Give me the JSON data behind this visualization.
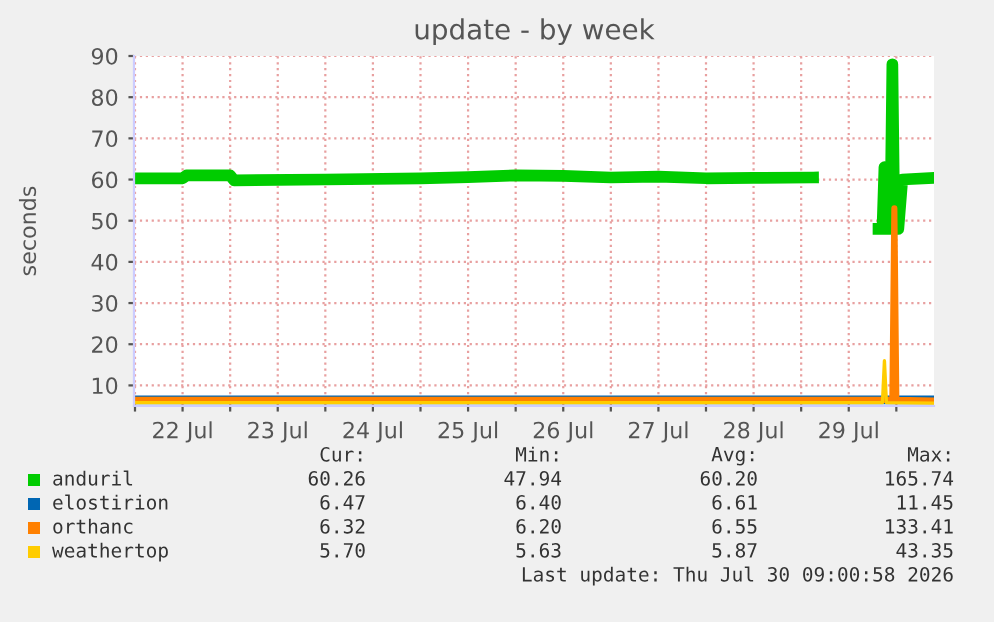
{
  "chart_data": {
    "type": "line",
    "title": "update - by week",
    "ylabel": "seconds",
    "xlim": [
      "2026-07-21T23:45",
      "2026-07-30T09:30"
    ],
    "xticks": [
      {
        "value": "2026-07-22T00:00",
        "label": null
      },
      {
        "value": "2026-07-22T12:00",
        "label": "22 Jul"
      },
      {
        "value": "2026-07-23T00:00",
        "label": null
      },
      {
        "value": "2026-07-23T12:00",
        "label": "23 Jul"
      },
      {
        "value": "2026-07-24T00:00",
        "label": null
      },
      {
        "value": "2026-07-24T12:00",
        "label": "24 Jul"
      },
      {
        "value": "2026-07-25T00:00",
        "label": null
      },
      {
        "value": "2026-07-25T12:00",
        "label": "25 Jul"
      },
      {
        "value": "2026-07-26T00:00",
        "label": null
      },
      {
        "value": "2026-07-26T12:00",
        "label": "26 Jul"
      },
      {
        "value": "2026-07-27T00:00",
        "label": null
      },
      {
        "value": "2026-07-27T12:00",
        "label": "27 Jul"
      },
      {
        "value": "2026-07-28T00:00",
        "label": null
      },
      {
        "value": "2026-07-28T12:00",
        "label": "28 Jul"
      },
      {
        "value": "2026-07-29T00:00",
        "label": null
      },
      {
        "value": "2026-07-29T12:00",
        "label": "29 Jul"
      },
      {
        "value": "2026-07-30T00:00",
        "label": null
      }
    ],
    "ylim": [
      5,
      90
    ],
    "yticks": [
      10,
      20,
      30,
      40,
      50,
      60,
      70,
      80,
      90
    ],
    "grid": true,
    "legend": "bottom",
    "series": [
      {
        "name": "anduril",
        "color": "#00cc00",
        "x": [
          "2026-07-21T23:45",
          "2026-07-22T12:00",
          "2026-07-22T13:00",
          "2026-07-23T00:00",
          "2026-07-23T01:00",
          "2026-07-24T00:00",
          "2026-07-25T00:00",
          "2026-07-25T12:00",
          "2026-07-26T00:00",
          "2026-07-26T12:00",
          "2026-07-27T00:00",
          "2026-07-27T12:00",
          "2026-07-28T00:00",
          "2026-07-28T12:00",
          "2026-07-29T03:00",
          "2026-07-29T03:30",
          "2026-07-29T19:30",
          "2026-07-29T20:30",
          "2026-07-29T21:00",
          "2026-07-29T21:30",
          "2026-07-29T22:30",
          "2026-07-29T23:00",
          "2026-07-29T23:30",
          "2026-07-30T00:30",
          "2026-07-30T01:30",
          "2026-07-30T09:30"
        ],
        "values": [
          60.3,
          60.3,
          61.0,
          61.0,
          59.8,
          60.0,
          60.3,
          60.6,
          61.0,
          60.9,
          60.5,
          60.7,
          60.3,
          60.4,
          60.5,
          null,
          48,
          48,
          63,
          48,
          48,
          88,
          48,
          48,
          60,
          60.4
        ]
      },
      {
        "name": "elostirion",
        "color": "#0066b3",
        "x": [
          "2026-07-21T23:45",
          "2026-07-30T09:30"
        ],
        "values": [
          6.5,
          6.5
        ]
      },
      {
        "name": "orthanc",
        "color": "#ff8000",
        "x": [
          "2026-07-21T23:45",
          "2026-07-29T23:00",
          "2026-07-29T23:30",
          "2026-07-30T00:00",
          "2026-07-30T09:30"
        ],
        "values": [
          6.5,
          6.5,
          53,
          6.5,
          6.3
        ]
      },
      {
        "name": "weathertop",
        "color": "#ffcc00",
        "x": [
          "2026-07-21T23:45",
          "2026-07-29T20:30",
          "2026-07-29T21:00",
          "2026-07-29T21:30",
          "2026-07-30T09:30"
        ],
        "values": [
          5.8,
          5.8,
          16,
          5.8,
          5.7
        ]
      }
    ],
    "annotations": [
      "Cur:",
      "Min:",
      "Avg:",
      "Max:",
      "60.26",
      "47.94",
      "60.20",
      "165.74",
      "6.47",
      "6.40",
      "6.61",
      "11.45",
      "6.32",
      "6.20",
      "6.55",
      "133.41",
      "5.70",
      "5.63",
      "5.87",
      "43.35",
      "Last update: Thu Jul 30 09:00:58 2026"
    ]
  }
}
